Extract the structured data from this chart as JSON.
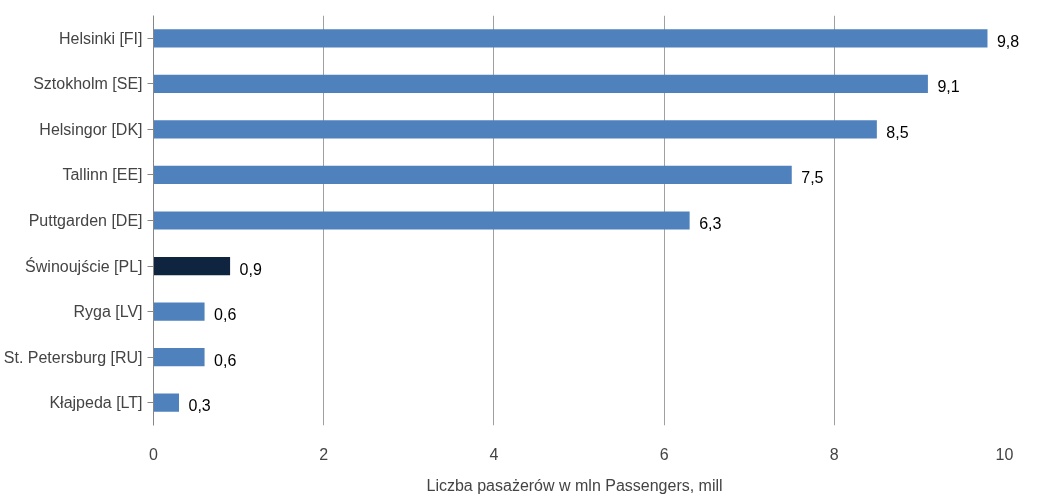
{
  "chart_data": {
    "type": "bar",
    "orientation": "horizontal",
    "xlabel": "Liczba pasażerów w mln   Passengers, mill",
    "categories": [
      "Helsinki [FI]",
      "Sztokholm [SE]",
      "Helsingor [DK]",
      "Tallinn [EE]",
      "Puttgarden [DE]",
      "Świnoujście [PL]",
      "Ryga [LV]",
      "St. Petersburg [RU]",
      "Kłajpeda [LT]"
    ],
    "values": [
      9.8,
      9.1,
      8.5,
      7.5,
      6.3,
      0.9,
      0.6,
      0.6,
      0.3
    ],
    "value_labels": [
      "9,8",
      "9,1",
      "8,5",
      "7,5",
      "6,3",
      "0,9",
      "0,6",
      "0,6",
      "0,3"
    ],
    "colors": [
      "#4f81bd",
      "#4f81bd",
      "#4f81bd",
      "#4f81bd",
      "#4f81bd",
      "#0f243e",
      "#4f81bd",
      "#4f81bd",
      "#4f81bd"
    ],
    "xlim": [
      0,
      10
    ],
    "xticks": [
      0,
      2,
      4,
      6,
      8,
      10
    ],
    "grid": "x"
  }
}
